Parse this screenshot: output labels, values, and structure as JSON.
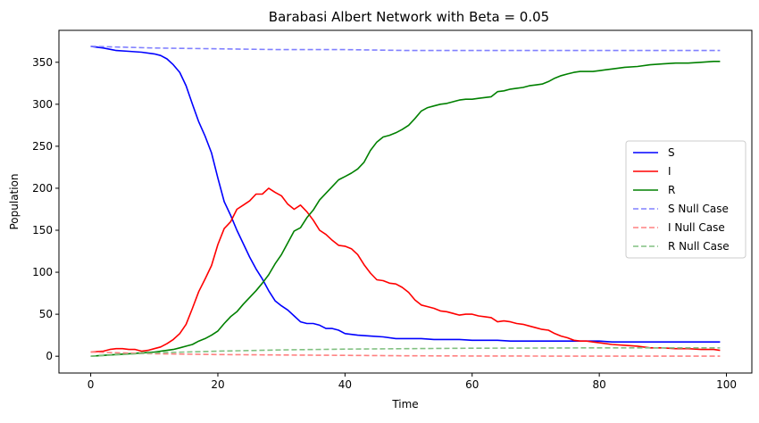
{
  "chart_data": {
    "type": "line",
    "title": "Barabasi Albert Network with Beta = 0.05",
    "xlabel": "Time",
    "ylabel": "Population",
    "xlim": [
      -5,
      104
    ],
    "ylim": [
      -20,
      388
    ],
    "xticks": [
      0,
      20,
      40,
      60,
      80,
      100
    ],
    "yticks": [
      0,
      50,
      100,
      150,
      200,
      250,
      300,
      350
    ],
    "legend_position": "center-right",
    "series": [
      {
        "name": "S",
        "color": "#0000ff",
        "style": "solid",
        "x": [
          0,
          2,
          4,
          6,
          8,
          10,
          11,
          12,
          13,
          14,
          15,
          16,
          17,
          18,
          19,
          20,
          21,
          22,
          23,
          24,
          25,
          26,
          27,
          28,
          29,
          30,
          31,
          32,
          33,
          34,
          35,
          36,
          37,
          38,
          39,
          40,
          42,
          44,
          46,
          48,
          50,
          52,
          54,
          56,
          58,
          60,
          62,
          64,
          66,
          68,
          70,
          72,
          74,
          76,
          78,
          80,
          82,
          84,
          86,
          88,
          90,
          92,
          94,
          96,
          98,
          99
        ],
        "y": [
          369,
          367,
          364,
          363,
          362,
          360,
          358,
          354,
          347,
          338,
          322,
          300,
          279,
          262,
          242,
          212,
          184,
          168,
          150,
          134,
          118,
          104,
          92,
          78,
          66,
          60,
          55,
          48,
          41,
          39,
          39,
          37,
          33,
          33,
          31,
          27,
          25,
          24,
          23,
          21,
          21,
          21,
          20,
          20,
          20,
          19,
          19,
          19,
          18,
          18,
          18,
          18,
          18,
          18,
          18,
          18,
          17,
          17,
          17,
          17,
          17,
          17,
          17,
          17,
          17,
          17
        ]
      },
      {
        "name": "I",
        "color": "#ff0000",
        "style": "solid",
        "x": [
          0,
          2,
          3,
          4,
          5,
          6,
          7,
          8,
          9,
          10,
          11,
          12,
          13,
          14,
          15,
          16,
          17,
          18,
          19,
          20,
          21,
          22,
          23,
          24,
          25,
          26,
          27,
          28,
          29,
          30,
          31,
          32,
          33,
          34,
          35,
          36,
          37,
          38,
          39,
          40,
          41,
          42,
          43,
          44,
          45,
          46,
          47,
          48,
          49,
          50,
          51,
          52,
          53,
          54,
          55,
          56,
          57,
          58,
          59,
          60,
          61,
          62,
          63,
          64,
          65,
          66,
          67,
          68,
          69,
          70,
          71,
          72,
          73,
          74,
          75,
          76,
          77,
          78,
          79,
          80,
          82,
          84,
          86,
          88,
          90,
          92,
          94,
          96,
          98,
          99
        ],
        "y": [
          5,
          6,
          8,
          9,
          9,
          8,
          8,
          6,
          7,
          9,
          11,
          15,
          20,
          27,
          38,
          57,
          77,
          92,
          108,
          133,
          152,
          160,
          175,
          180,
          185,
          193,
          193,
          200,
          195,
          191,
          181,
          175,
          180,
          172,
          162,
          150,
          145,
          138,
          132,
          131,
          128,
          121,
          109,
          99,
          91,
          90,
          87,
          86,
          82,
          76,
          67,
          61,
          59,
          57,
          54,
          53,
          51,
          49,
          50,
          50,
          48,
          47,
          46,
          41,
          42,
          41,
          39,
          38,
          36,
          34,
          32,
          31,
          27,
          24,
          22,
          19,
          18,
          18,
          17,
          16,
          14,
          13,
          12,
          10,
          10,
          9,
          9,
          8,
          8,
          7
        ]
      },
      {
        "name": "R",
        "color": "#008000",
        "style": "solid",
        "x": [
          0,
          2,
          4,
          6,
          8,
          10,
          12,
          13,
          14,
          15,
          16,
          17,
          18,
          19,
          20,
          21,
          22,
          23,
          24,
          25,
          26,
          27,
          28,
          29,
          30,
          31,
          32,
          33,
          34,
          35,
          36,
          37,
          38,
          39,
          40,
          41,
          42,
          43,
          44,
          45,
          46,
          47,
          48,
          49,
          50,
          51,
          52,
          53,
          54,
          55,
          56,
          57,
          58,
          59,
          60,
          61,
          62,
          63,
          64,
          65,
          66,
          67,
          68,
          69,
          70,
          71,
          72,
          73,
          74,
          75,
          76,
          77,
          78,
          79,
          80,
          81,
          82,
          84,
          86,
          88,
          90,
          92,
          94,
          96,
          98,
          99
        ],
        "y": [
          0,
          1,
          2,
          3,
          4,
          5,
          7,
          8,
          10,
          12,
          14,
          18,
          21,
          25,
          30,
          39,
          47,
          53,
          62,
          70,
          78,
          87,
          97,
          110,
          121,
          135,
          149,
          153,
          165,
          174,
          186,
          194,
          202,
          210,
          214,
          218,
          223,
          231,
          245,
          255,
          261,
          263,
          266,
          270,
          275,
          283,
          292,
          296,
          298,
          300,
          301,
          303,
          305,
          306,
          306,
          307,
          308,
          309,
          315,
          316,
          318,
          319,
          320,
          322,
          323,
          324,
          327,
          331,
          334,
          336,
          338,
          339,
          339,
          339,
          340,
          341,
          342,
          344,
          345,
          347,
          348,
          349,
          349,
          350,
          351,
          351
        ]
      },
      {
        "name": "S Null Case",
        "color": "#8080ff",
        "style": "dashed",
        "x": [
          0,
          10,
          20,
          30,
          40,
          50,
          60,
          70,
          80,
          90,
          99
        ],
        "y": [
          369,
          367,
          366,
          365,
          365,
          364,
          364,
          364,
          364,
          364,
          364
        ]
      },
      {
        "name": "I Null Case",
        "color": "#ff8080",
        "style": "dashed",
        "x": [
          0,
          10,
          20,
          30,
          40,
          50,
          60,
          70,
          80,
          90,
          99
        ],
        "y": [
          5,
          3,
          2,
          1.5,
          1,
          0.5,
          0.3,
          0.2,
          0.1,
          0.1,
          0.1
        ]
      },
      {
        "name": "R Null Case",
        "color": "#80c080",
        "style": "dashed",
        "x": [
          0,
          10,
          20,
          30,
          40,
          50,
          60,
          70,
          80,
          90,
          99
        ],
        "y": [
          0,
          4,
          6,
          7.5,
          8.5,
          9,
          9.5,
          9.8,
          10,
          10,
          10
        ]
      }
    ]
  }
}
